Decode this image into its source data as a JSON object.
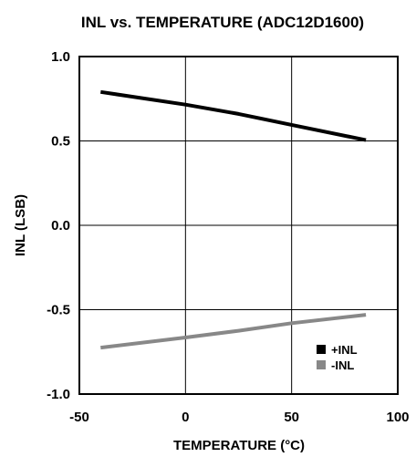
{
  "chart_data": {
    "type": "line",
    "title": "INL vs. TEMPERATURE (ADC12D1600)",
    "xlabel": "TEMPERATURE (°C)",
    "ylabel": "INL (LSB)",
    "xlim": [
      -50,
      100
    ],
    "ylim": [
      -1.0,
      1.0
    ],
    "x_ticks": [
      -50,
      0,
      50,
      100
    ],
    "y_ticks": [
      -1.0,
      -0.5,
      0.0,
      0.5,
      1.0
    ],
    "x_tick_labels": [
      "-50",
      "0",
      "50",
      "100"
    ],
    "y_tick_labels": [
      "-1.0",
      "-0.5",
      "0.0",
      "0.5",
      "1.0"
    ],
    "grid": true,
    "legend_position": "bottom-right",
    "series": [
      {
        "name": "+INL",
        "color": "#000000",
        "x": [
          -40,
          0,
          25,
          50,
          85
        ],
        "y": [
          0.79,
          0.715,
          0.66,
          0.595,
          0.505
        ]
      },
      {
        "name": "-INL",
        "color": "#888888",
        "x": [
          -40,
          0,
          25,
          50,
          85
        ],
        "y": [
          -0.725,
          -0.665,
          -0.625,
          -0.58,
          -0.53
        ]
      }
    ]
  }
}
